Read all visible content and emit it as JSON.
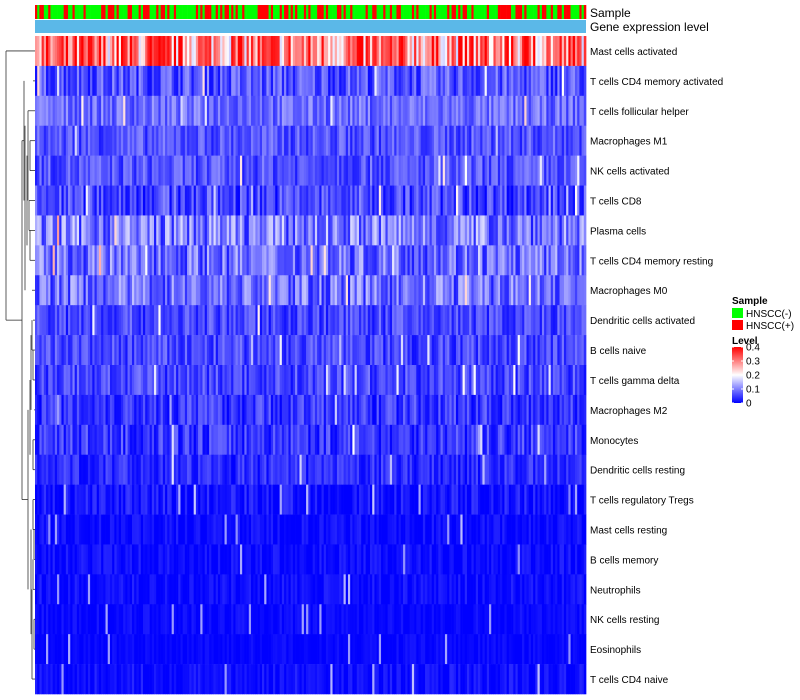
{
  "chart_data": {
    "type": "heatmap",
    "title": "",
    "annotations": {
      "sample_label": "Sample",
      "gene_label": "Gene expression level"
    },
    "columns": 250,
    "rows": [
      {
        "name": "Mast cells activated",
        "mean": 0.28,
        "spread": 0.12
      },
      {
        "name": "T cells CD4 memory activated",
        "mean": 0.06,
        "spread": 0.05
      },
      {
        "name": "T cells follicular helper",
        "mean": 0.08,
        "spread": 0.04
      },
      {
        "name": "Macrophages M1",
        "mean": 0.06,
        "spread": 0.04
      },
      {
        "name": "NK cells activated",
        "mean": 0.06,
        "spread": 0.04
      },
      {
        "name": "T cells CD8",
        "mean": 0.05,
        "spread": 0.05
      },
      {
        "name": "Plasma cells",
        "mean": 0.09,
        "spread": 0.07
      },
      {
        "name": "T cells CD4 memory resting",
        "mean": 0.08,
        "spread": 0.06
      },
      {
        "name": "Macrophages M0",
        "mean": 0.08,
        "spread": 0.06
      },
      {
        "name": "Dendritic cells activated",
        "mean": 0.05,
        "spread": 0.04
      },
      {
        "name": "B cells naive",
        "mean": 0.05,
        "spread": 0.04
      },
      {
        "name": "T cells gamma delta",
        "mean": 0.05,
        "spread": 0.04
      },
      {
        "name": "Macrophages M2",
        "mean": 0.04,
        "spread": 0.04
      },
      {
        "name": "Monocytes",
        "mean": 0.04,
        "spread": 0.04
      },
      {
        "name": "Dendritic cells resting",
        "mean": 0.03,
        "spread": 0.03
      },
      {
        "name": "T cells regulatory  Tregs",
        "mean": 0.01,
        "spread": 0.03
      },
      {
        "name": "Mast cells resting",
        "mean": 0.005,
        "spread": 0.02
      },
      {
        "name": "B cells memory",
        "mean": 0.006,
        "spread": 0.02
      },
      {
        "name": "Neutrophils",
        "mean": 0.006,
        "spread": 0.02
      },
      {
        "name": "NK cells resting",
        "mean": 0.004,
        "spread": 0.015
      },
      {
        "name": "Eosinophils",
        "mean": 0.003,
        "spread": 0.012
      },
      {
        "name": "T cells CD4 naive",
        "mean": 0.008,
        "spread": 0.02
      }
    ],
    "legend": {
      "sample": {
        "title": "Sample",
        "items": [
          {
            "label": "HNSCC(-)",
            "color": "#00ff00"
          },
          {
            "label": "HNSCC(+)",
            "color": "#ff0000"
          }
        ]
      },
      "level": {
        "title": "Level",
        "ticks": [
          "0.4",
          "0.3",
          "0.2",
          "0.1",
          "0"
        ],
        "tick_values": [
          0.4,
          0.3,
          0.2,
          0.1,
          0
        ],
        "range": [
          0,
          0.4
        ],
        "colors": {
          "low": "#0000ff",
          "mid": "#ffffff",
          "high": "#ff0000"
        }
      }
    },
    "annotation_colors": {
      "negative": "#00ff00",
      "positive": "#ff0000",
      "gene": "#5bb8e8"
    }
  }
}
